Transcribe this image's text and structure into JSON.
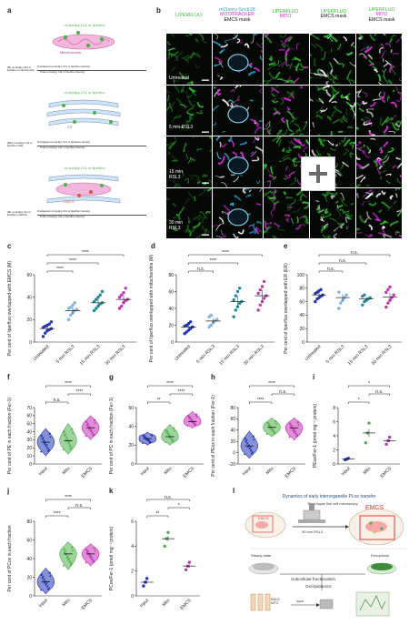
{
  "panel_labels": [
    "a",
    "b",
    "c",
    "d",
    "e",
    "f",
    "g",
    "h",
    "i",
    "j",
    "k",
    "l"
  ],
  "panel_a": {
    "rows": [
      {
        "title": "ox-bodipy C11 or liperfluo",
        "organelle": "Mitochondria",
        "left": "(M) ox-bodipy C11 or liperfluo in mitochondria",
        "numerator": "Overlapped ox-bodipy C11 or liperfluo intensity",
        "denominator": "Total ox-bodipy C11 or liperfluo intensity"
      },
      {
        "title": "ox-bodipy C11 or liperfluo",
        "organelle": "ER",
        "left": "(ER) ox-bodipy C11 or liperfluo in ER",
        "numerator": "Overlapped ox-bodipy C11 or liperfluo intensity",
        "denominator": "Total ox-bodipy C11 or liperfluo intensity"
      },
      {
        "title": "ox-bodipy C11 or liperfluo",
        "organelle": "EMCS",
        "left": "(M) ox-bodipy C11 or liperfluo in EMCS",
        "numerator": "Overlapped ox-bodipy C11 or liperfluo intensity",
        "denominator": "Total ox-bodipy C11 or liperfluo intensity"
      }
    ]
  },
  "panel_b": {
    "headers": [
      {
        "lines": [
          "LIPERFLUO"
        ],
        "colors": [
          "#2fbf2f"
        ]
      },
      {
        "lines": [
          "mCherry-Sec61B",
          "MITOTRACKER",
          "EMCS mask"
        ],
        "colors": [
          "#2aa7d6",
          "#d42ad4",
          "#111111"
        ]
      },
      {
        "lines": [
          "LIPERFLUO",
          "MITO"
        ],
        "colors": [
          "#2fbf2f",
          "#d42ad4"
        ]
      },
      {
        "lines": [
          "LIPERFLUO",
          "EMCS mask"
        ],
        "colors": [
          "#2fbf2f",
          "#111111"
        ]
      },
      {
        "lines": [
          "LIPERFLUO",
          "MITO",
          "EMCS mask"
        ],
        "colors": [
          "#2fbf2f",
          "#d42ad4",
          "#111111"
        ]
      }
    ],
    "conditions": [
      {
        "lines": [
          "Untreated"
        ]
      },
      {
        "lines": [
          "5 min RSL3"
        ]
      },
      {
        "lines": [
          "15 min",
          "RSL3"
        ]
      },
      {
        "lines": [
          "30 min",
          "RSL3"
        ]
      }
    ]
  },
  "panel_c": {
    "ylabel": "Per cent of liperfluo overlapped with EMCS (M)",
    "ylim": [
      0,
      60
    ],
    "yticks": [
      0,
      20,
      40,
      60
    ],
    "categories": [
      "Untreated",
      "5 min RSL3",
      "15 min RSL3",
      "30 min RSL3"
    ],
    "colors": [
      "#2236b5",
      "#7cb5e8",
      "#1f8a9a",
      "#c433b8"
    ],
    "means": [
      12,
      28,
      35,
      38
    ],
    "values": [
      [
        5,
        8,
        10,
        11,
        12,
        13,
        14,
        15,
        16,
        18
      ],
      [
        20,
        24,
        26,
        28,
        29,
        30,
        31,
        33,
        35
      ],
      [
        28,
        30,
        32,
        34,
        35,
        36,
        38,
        40,
        42,
        45
      ],
      [
        30,
        32,
        35,
        37,
        38,
        40,
        42,
        44,
        48
      ]
    ],
    "sig": [
      {
        "a": 0,
        "b": 1,
        "label": "****"
      },
      {
        "a": 0,
        "b": 2,
        "label": "****"
      },
      {
        "a": 0,
        "b": 3,
        "label": "****"
      }
    ]
  },
  "panel_d": {
    "ylabel": "Per cent of liperfluo overlapped with mitochondria (M)",
    "ylim": [
      0,
      80
    ],
    "yticks": [
      0,
      20,
      40,
      60,
      80
    ],
    "categories": [
      "Untreated",
      "5 min RSL3",
      "15 min RSL3",
      "30 min RSL3"
    ],
    "colors": [
      "#2236b5",
      "#7cb5e8",
      "#1f8a9a",
      "#c433b8"
    ],
    "means": [
      18,
      25,
      48,
      55
    ],
    "values": [
      [
        10,
        12,
        14,
        16,
        18,
        19,
        20,
        22,
        24
      ],
      [
        18,
        20,
        23,
        25,
        27,
        30,
        32
      ],
      [
        30,
        38,
        42,
        46,
        48,
        50,
        55,
        60,
        64
      ],
      [
        38,
        44,
        48,
        52,
        55,
        58,
        62,
        66,
        72
      ]
    ],
    "sig": [
      {
        "a": 0,
        "b": 1,
        "label": "n.s."
      },
      {
        "a": 0,
        "b": 2,
        "label": "****"
      },
      {
        "a": 0,
        "b": 3,
        "label": "****"
      }
    ]
  },
  "panel_e": {
    "ylabel": "Per cent of liperfluo overlapped with ER (ER)",
    "ylim": [
      0,
      100
    ],
    "yticks": [
      0,
      20,
      40,
      60,
      80,
      100
    ],
    "categories": [
      "Untreated",
      "5 min RSL3",
      "15 min RSL3",
      "30 min RSL3"
    ],
    "colors": [
      "#2236b5",
      "#7cb5e8",
      "#1f8a9a",
      "#c433b8"
    ],
    "means": [
      70,
      66,
      64,
      67
    ],
    "values": [
      [
        60,
        64,
        66,
        68,
        70,
        72,
        74,
        76,
        78
      ],
      [
        50,
        58,
        62,
        66,
        70,
        74
      ],
      [
        55,
        60,
        62,
        64,
        66,
        68,
        70
      ],
      [
        52,
        58,
        62,
        66,
        70,
        74,
        78,
        82
      ]
    ],
    "sig": [
      {
        "a": 0,
        "b": 1,
        "label": "n.s."
      },
      {
        "a": 0,
        "b": 2,
        "label": "n.s."
      },
      {
        "a": 0,
        "b": 3,
        "label": "n.s."
      }
    ]
  },
  "panel_f": {
    "ylabel": "Per cent of PE in each fraction (Fer-1)",
    "ylim": [
      0,
      70
    ],
    "yticks": [
      0,
      10,
      20,
      30,
      40,
      50,
      60,
      70
    ],
    "categories": [
      "Input",
      "Mito",
      "EMCS"
    ],
    "colors": [
      "#2236b5",
      "#4fb04a",
      "#c433b8"
    ],
    "centers": [
      27,
      29,
      45
    ],
    "spreads": [
      [
        10,
        44
      ],
      [
        12,
        50
      ],
      [
        30,
        60
      ]
    ],
    "sig": [
      {
        "a": 0,
        "b": 1,
        "label": "n.s."
      },
      {
        "a": 1,
        "b": 2,
        "label": "****"
      },
      {
        "a": 0,
        "b": 2,
        "label": "****"
      }
    ]
  },
  "panel_g": {
    "ylabel": "Per cent of PC in each fraction (Fer-1)",
    "ylim": [
      0,
      60
    ],
    "yticks": [
      0,
      20,
      40,
      60
    ],
    "categories": [
      "Input",
      "Mito",
      "EMCS"
    ],
    "colors": [
      "#2236b5",
      "#4fb04a",
      "#c433b8"
    ],
    "centers": [
      27,
      29,
      45
    ],
    "spreads": [
      [
        20,
        34
      ],
      [
        20,
        42
      ],
      [
        38,
        56
      ]
    ],
    "sig": [
      {
        "a": 0,
        "b": 1,
        "label": "**"
      },
      {
        "a": 1,
        "b": 2,
        "label": "****"
      },
      {
        "a": 0,
        "b": 2,
        "label": "****"
      }
    ]
  },
  "panel_h": {
    "ylabel": "Per cent of PEox in each fraction (Fer-1)",
    "ylim": [
      -20,
      80
    ],
    "yticks": [
      -20,
      0,
      20,
      40,
      60,
      80
    ],
    "categories": [
      "Input",
      "Mito",
      "EMCS"
    ],
    "colors": [
      "#2236b5",
      "#4fb04a",
      "#c433b8"
    ],
    "centers": [
      12,
      45,
      44
    ],
    "spreads": [
      [
        -10,
        38
      ],
      [
        28,
        62
      ],
      [
        22,
        62
      ]
    ],
    "sig": [
      {
        "a": 0,
        "b": 1,
        "label": "****"
      },
      {
        "a": 1,
        "b": 2,
        "label": "n.s."
      },
      {
        "a": 0,
        "b": 2,
        "label": "****"
      }
    ]
  },
  "panel_i": {
    "ylabel": "PEox/Fer-1 (pmol mg⁻¹ protein)",
    "ylim": [
      0,
      8
    ],
    "yticks": [
      0,
      2,
      4,
      6,
      8
    ],
    "categories": [
      "Input",
      "Mito",
      "EMCS"
    ],
    "colors": [
      "#2236b5",
      "#4fb04a",
      "#c433b8"
    ],
    "means": [
      0.7,
      4.4,
      3.3
    ],
    "values": [
      [
        0.6,
        0.7,
        0.8
      ],
      [
        3.0,
        4.4,
        5.8
      ],
      [
        2.8,
        3.3,
        3.8
      ]
    ],
    "sig": [
      {
        "a": 0,
        "b": 1,
        "label": "*"
      },
      {
        "a": 1,
        "b": 2,
        "label": "n.s."
      },
      {
        "a": 0,
        "b": 2,
        "label": "*"
      }
    ]
  },
  "panel_j": {
    "ylabel": "Per cent of PCox in each fraction",
    "ylim": [
      0,
      80
    ],
    "yticks": [
      0,
      20,
      40,
      60,
      80
    ],
    "categories": [
      "Input",
      "Mito",
      "EMCS"
    ],
    "colors": [
      "#2236b5",
      "#4fb04a",
      "#c433b8"
    ],
    "centers": [
      15,
      45,
      45
    ],
    "spreads": [
      [
        2,
        30
      ],
      [
        28,
        58
      ],
      [
        32,
        56
      ]
    ],
    "sig": [
      {
        "a": 0,
        "b": 1,
        "label": "****"
      },
      {
        "a": 1,
        "b": 2,
        "label": "n.s."
      },
      {
        "a": 0,
        "b": 2,
        "label": "****"
      }
    ]
  },
  "panel_k": {
    "ylabel": "PCox/Fer-1 (pmol mg⁻¹ protein)",
    "ylim": [
      0,
      6
    ],
    "yticks": [
      0,
      2,
      4,
      6
    ],
    "categories": [
      "Input",
      "Mito",
      "EMCS"
    ],
    "colors": [
      "#2236b5",
      "#4fb04a",
      "#c433b8"
    ],
    "means": [
      1.1,
      4.6,
      2.4
    ],
    "values": [
      [
        0.8,
        1.1,
        1.4
      ],
      [
        4.0,
        4.6,
        5.1
      ],
      [
        2.1,
        2.4,
        2.7
      ]
    ],
    "sig": [
      {
        "a": 0,
        "b": 1,
        "label": "**"
      },
      {
        "a": 1,
        "b": 2,
        "label": "*"
      },
      {
        "a": 0,
        "b": 2,
        "label": "n.s."
      }
    ]
  },
  "panel_l": {
    "title": "Dynamics of early interorganelle PLox transfer",
    "subtitle": "Time-lapse live cell microscopy",
    "emcs_small": "EMCS",
    "emcs_big": "EMCS",
    "arrow_label": "30 min RSL3",
    "steady": "Steady state",
    "ferroptosis": "Ferroptosis",
    "fractionation": "Subcellular fractionation",
    "lipidomics": "Oxi-lipidomics",
    "tubes": [
      "EMCS",
      "MITO"
    ],
    "input": "Input"
  }
}
